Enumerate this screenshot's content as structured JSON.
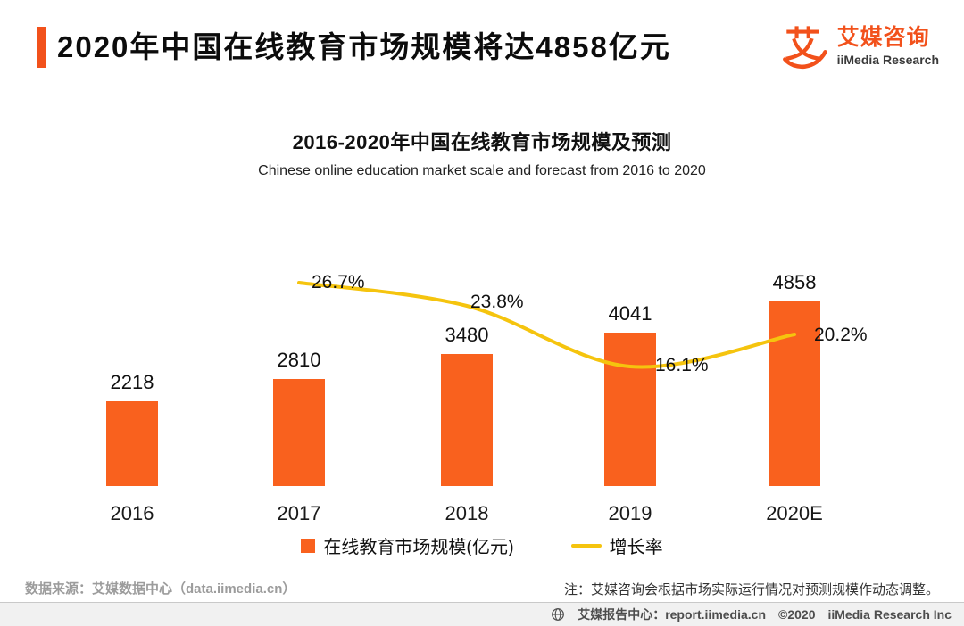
{
  "header": {
    "title": "2020年中国在线教育市场规模将达4858亿元"
  },
  "logo": {
    "glyph": "艾",
    "name_cn": "艾媒咨询",
    "name_en": "iiMedia Research"
  },
  "chart_data": {
    "type": "bar+line",
    "title": "2016-2020年中国在线教育市场规模及预测",
    "subtitle": "Chinese online education market scale and forecast from 2016 to 2020",
    "categories": [
      "2016",
      "2017",
      "2018",
      "2019",
      "2020E"
    ],
    "series": [
      {
        "name": "在线教育市场规模(亿元)",
        "type": "bar",
        "unit": "亿元",
        "values": [
          2218,
          2810,
          3480,
          4041,
          4858
        ]
      },
      {
        "name": "增长率",
        "type": "line",
        "unit": "%",
        "values": [
          null,
          26.7,
          23.8,
          16.1,
          20.2
        ]
      }
    ],
    "grid": false,
    "axes_visible": false,
    "legend_position": "bottom"
  },
  "footnotes": {
    "source": "数据来源：艾媒数据中心（data.iimedia.cn）",
    "note": "注：艾媒咨询会根据市场实际运行情况对预测规模作动态调整。"
  },
  "footer": {
    "report_center": "艾媒报告中心：report.iimedia.cn",
    "copyright": "©2020",
    "company": "iiMedia Research Inc"
  },
  "colors": {
    "accent": "#F2511B",
    "bar": "#F9611E",
    "line": "#F5C40E",
    "footer_bg": "#F1F1F1"
  }
}
